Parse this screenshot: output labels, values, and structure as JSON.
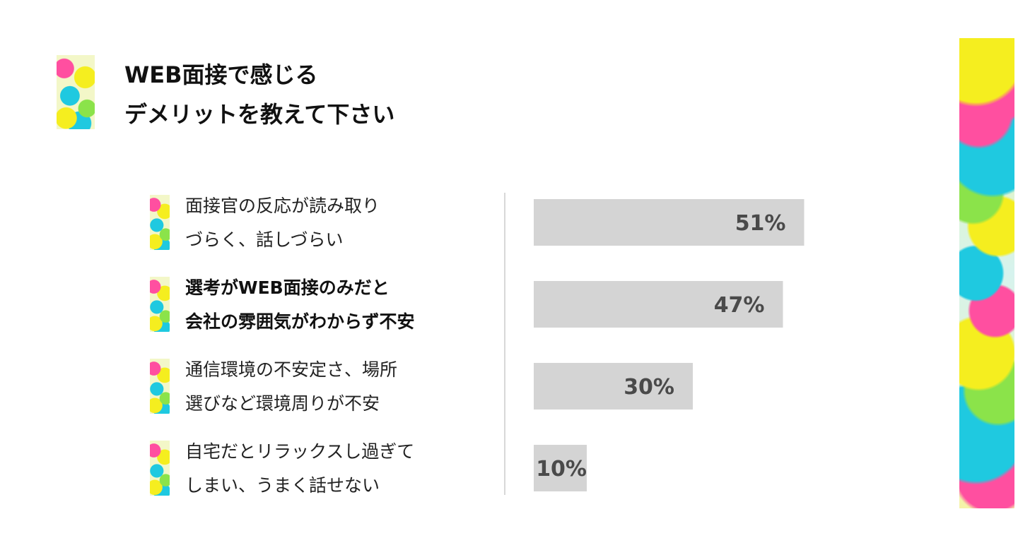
{
  "title_lines": [
    "WEB面接で感じる",
    "デメリットを教えて下さい"
  ],
  "colors": {
    "bar": "#d4d4d4",
    "bar_text": "#4a4a4a",
    "splash": [
      "#ff4fa0",
      "#f5ee1f",
      "#1fc9e0",
      "#8be34a"
    ]
  },
  "chart_data": {
    "type": "bar",
    "orientation": "horizontal",
    "categories": [
      "面接官の反応が読み取りづらく、話しづらい",
      "選考がWEB面接のみだと会社の雰囲気がわからず不安",
      "通信環境の不安定さ、場所選びなど環境周りが不安",
      "自宅だとリラックスし過ぎてしまい、うまく話せない"
    ],
    "values": [
      51,
      47,
      30,
      10
    ],
    "value_labels": [
      "51%",
      "47%",
      "30%",
      "10%"
    ],
    "unit": "%",
    "items": [
      {
        "lines": [
          "面接官の反応が読み取り",
          "づらく、話しづらい"
        ],
        "emphasis": false
      },
      {
        "lines": [
          "選考がWEB面接のみだと",
          "会社の雰囲気がわからず不安"
        ],
        "emphasis": true
      },
      {
        "lines": [
          "通信環境の不安定さ、場所",
          "選びなど環境周りが不安"
        ],
        "emphasis": false
      },
      {
        "lines": [
          "自宅だとリラックスし過ぎて",
          "しまい、うまく話せない"
        ],
        "emphasis": false
      }
    ],
    "grid": false,
    "legend": "none"
  }
}
